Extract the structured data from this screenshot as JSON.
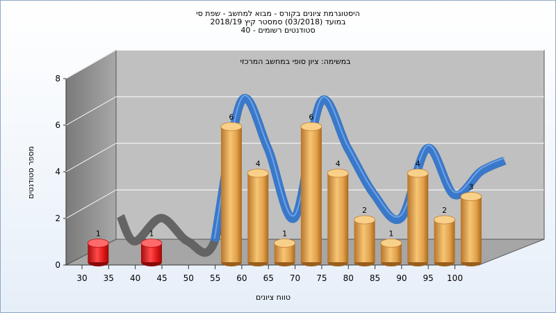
{
  "chart_data": {
    "type": "bar",
    "title_lines": [
      "היסטוגרמת ציונים בקורס - מבוא למחשב - שפת סי",
      "במועד (03/2018) סמסטר קיץ 2018/19",
      "סטודנטים רשומים - 40"
    ],
    "subtitle": "במשימה: ציון סופי במחשב המרכזי",
    "xlabel": "טווח ציונים",
    "ylabel": "מספר סטודנטים",
    "ylim": [
      0,
      8
    ],
    "y_ticks": [
      "0",
      "2",
      "4",
      "6",
      "8"
    ],
    "x_ticks": [
      "30",
      "35",
      "40",
      "45",
      "50",
      "55",
      "60",
      "65",
      "70",
      "75",
      "80",
      "85",
      "90",
      "95",
      "100"
    ],
    "categories": [
      "30",
      "35",
      "40",
      "45",
      "50",
      "55",
      "60",
      "65",
      "70",
      "75",
      "80",
      "85",
      "90",
      "95",
      "100"
    ],
    "values": [
      1,
      0,
      1,
      0,
      0,
      6,
      4,
      1,
      6,
      4,
      2,
      1,
      4,
      2,
      3
    ],
    "fail_color": "#e01818",
    "pass_color": "#e2a24a",
    "curve_color_low": "#5f5f5f",
    "curve_color_high": "#3a78c9",
    "grid": true,
    "style": "3d-cylinders with smoothed distribution ribbon"
  }
}
